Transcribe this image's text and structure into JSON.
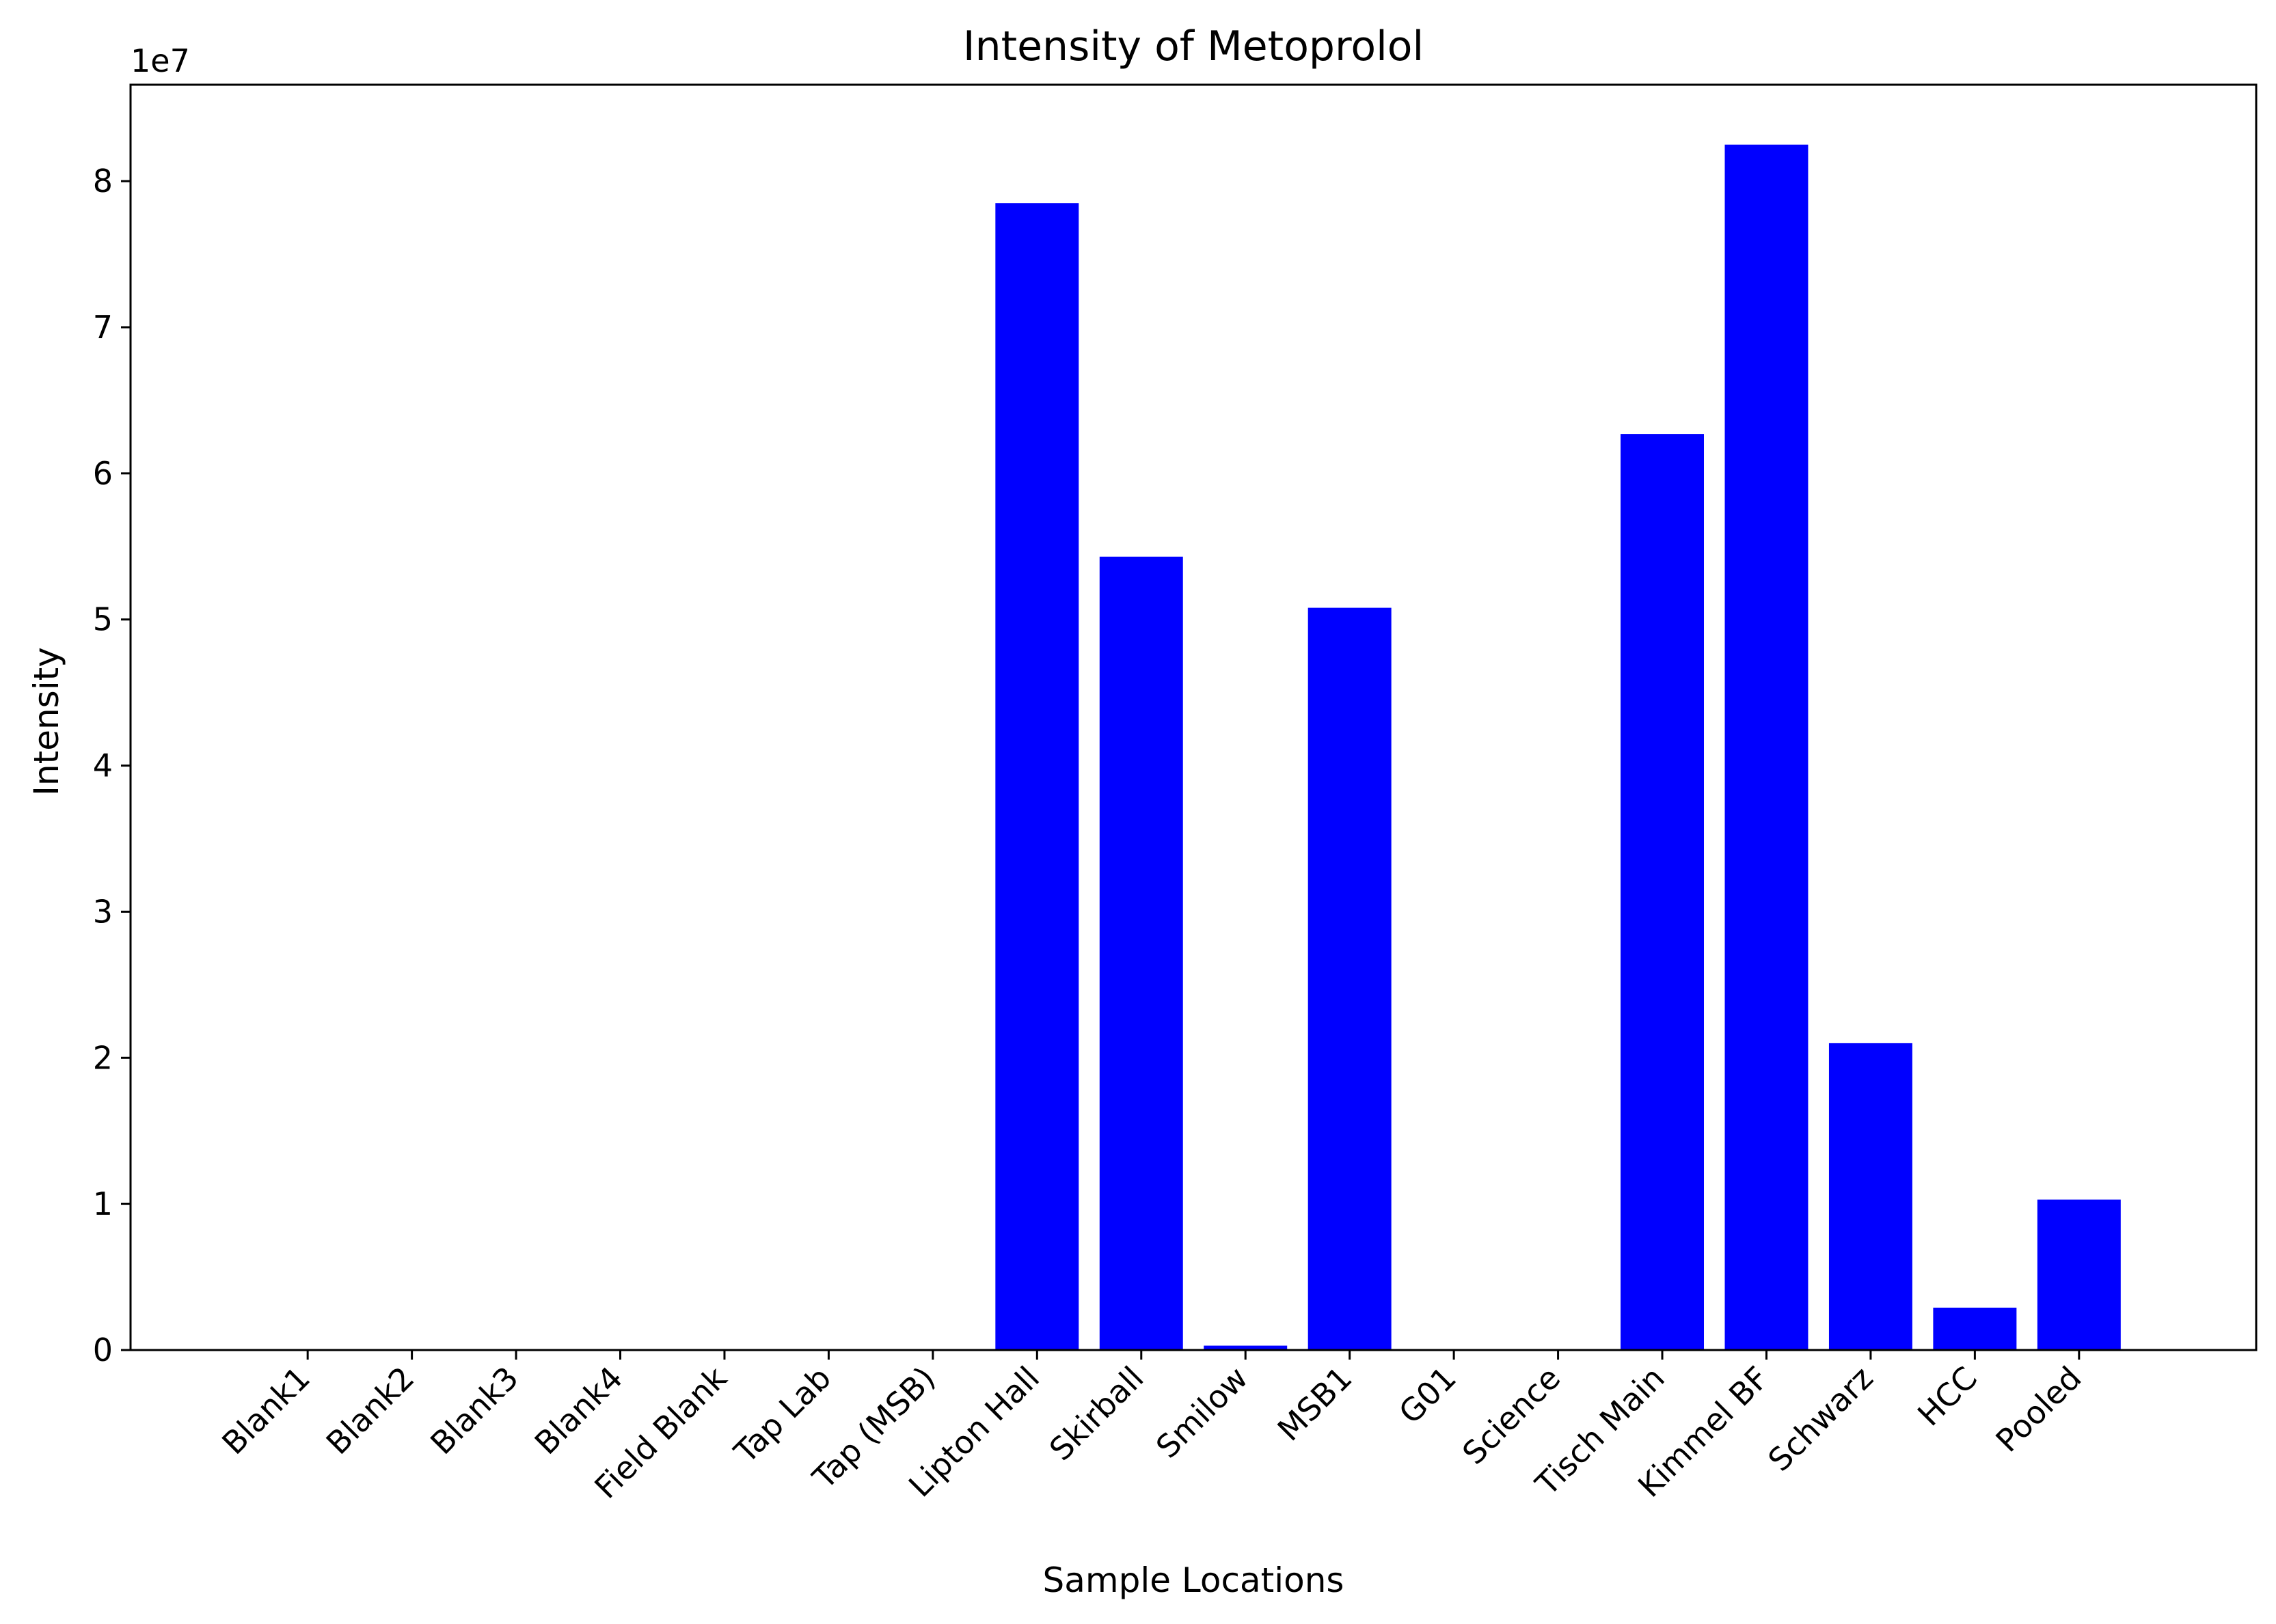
{
  "chart_data": {
    "type": "bar",
    "title": "Intensity of Metoprolol",
    "xlabel": "Sample Locations",
    "ylabel": "Intensity",
    "y_offset_text": "1e7",
    "categories": [
      "Blank1",
      "Blank2",
      "Blank3",
      "Blank4",
      "Field Blank",
      "Tap Lab",
      "Tap (MSB)",
      "Lipton Hall",
      "Skirball",
      "Smilow",
      "MSB1",
      "G01",
      "Science",
      "Tisch Main",
      "Kimmel BF",
      "Schwarz",
      "HCC",
      "Pooled"
    ],
    "values": [
      0,
      0,
      0,
      0,
      0,
      0,
      0,
      78500000,
      54300000,
      300000,
      50800000,
      0,
      0,
      62700000,
      82500000,
      21000000,
      2900000,
      10300000
    ],
    "ylim": [
      0,
      86600000
    ],
    "yticks": [
      0,
      10000000,
      20000000,
      30000000,
      40000000,
      50000000,
      60000000,
      70000000,
      80000000
    ],
    "ytick_labels": [
      "0",
      "1",
      "2",
      "3",
      "4",
      "5",
      "6",
      "7",
      "8"
    ],
    "bar_color": "#0000ff",
    "grid": false,
    "legend": "none"
  }
}
